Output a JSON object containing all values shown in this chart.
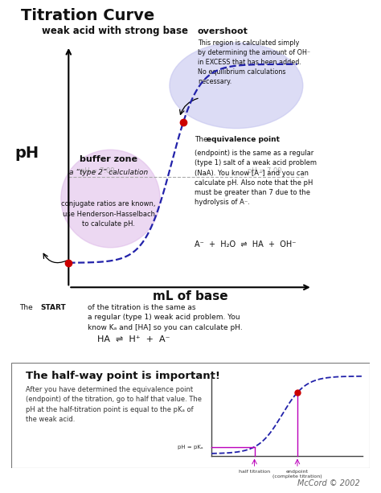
{
  "title": "Titration Curve",
  "subtitle": "weak acid with strong base",
  "xlabel": "mL of base",
  "ylabel": "pH",
  "bg_color": "#ffffff",
  "white": "#ffffff",
  "curve_color": "#2222aa",
  "dot_color": "#cc0000",
  "buffer_fill": "#ddb8e8",
  "overshoot_fill": "#c0c0ee",
  "ph7_line_color": "#aaaaaa",
  "magenta": "#bb00bb",
  "text_dark": "#111111",
  "text_mid": "#333333",
  "text_light": "#666666",
  "mccord": "McCord © 2002",
  "overshoot_text": "This region is calculated simply\nby determining the amount of OH⁻\nin EXCESS that has been added.\nNo equilibrium calculations\nnecessary.",
  "buffer_text1": "buffer zone",
  "buffer_text2": "a “type 2” calculation",
  "buffer_text3": "conjugate ratios are known,\nuse Henderson-Hasselbach\nto calculate pH.",
  "eq_label": "equivalence point",
  "eq_text": "(endpoint) is the same as a regular\n(type 1) salt of a weak acid problem\n(NaA). You know [A⁻] and you can\ncalculate pH. Also note that the pH\nmust be greater than 7 due to the\nhydrolysis of A⁻.",
  "chem_eq": "A⁻  +  H₂O  ⇌  HA  +  OH⁻",
  "start_text": "The START of the titration is the same as\na regular (type 1) weak acid problem. You\nknow Kₐ and [HA] so you can calculate pH.",
  "ha_eq": "HA  ⇌  H⁺  +  A⁻",
  "half_title": "The half-way point is important!",
  "half_text": "After you have determined the equivalence point\n(endpoint) of the titration, go to half that value. The\npH at the half-titration point is equal to the pKₐ of\nthe weak acid.",
  "pkA_label": "pH = pKₐ",
  "half_label": "half titration",
  "endpoint_label": "endpoint\n(complete titration)"
}
